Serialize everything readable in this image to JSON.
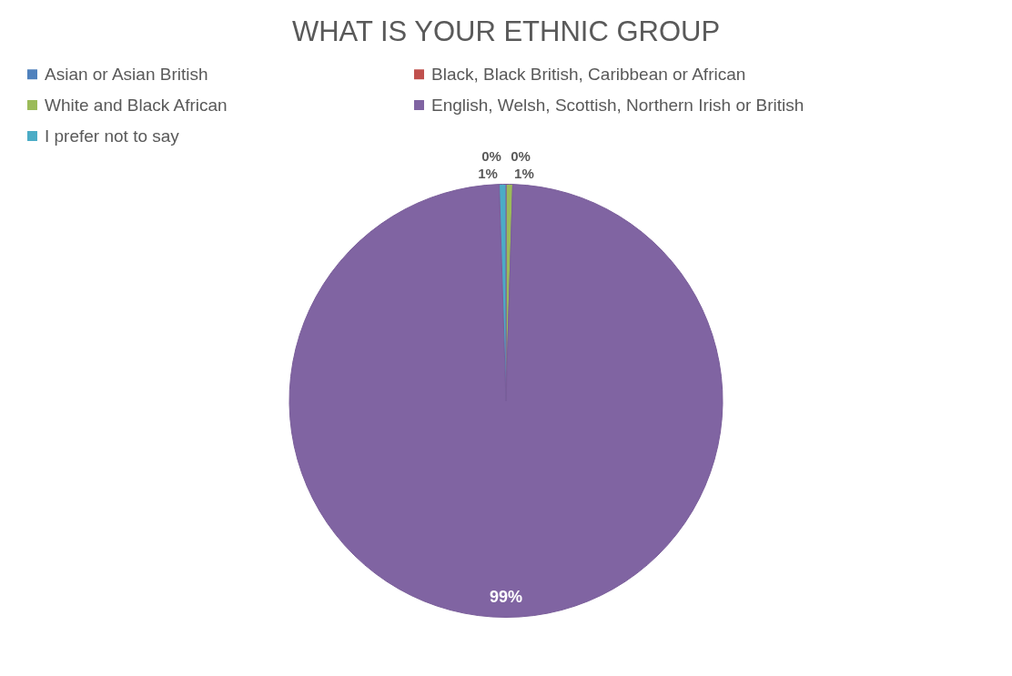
{
  "chart_data": {
    "type": "pie",
    "title": "WHAT IS YOUR ETHNIC GROUP",
    "categories": [
      "Asian or Asian British",
      "Black, Black British, Caribbean or African",
      "White and Black African",
      "English, Welsh, Scottish, Northern Irish or British",
      "I prefer not to say"
    ],
    "values": [
      0,
      0,
      0.5,
      99,
      0.5
    ],
    "value_labels": [
      "0%",
      "0%",
      "1%",
      "99%",
      "1%"
    ],
    "colors": [
      "#4f81bd",
      "#c0504d",
      "#9bbb59",
      "#8064a2",
      "#4bacc6"
    ],
    "legend": "top"
  }
}
